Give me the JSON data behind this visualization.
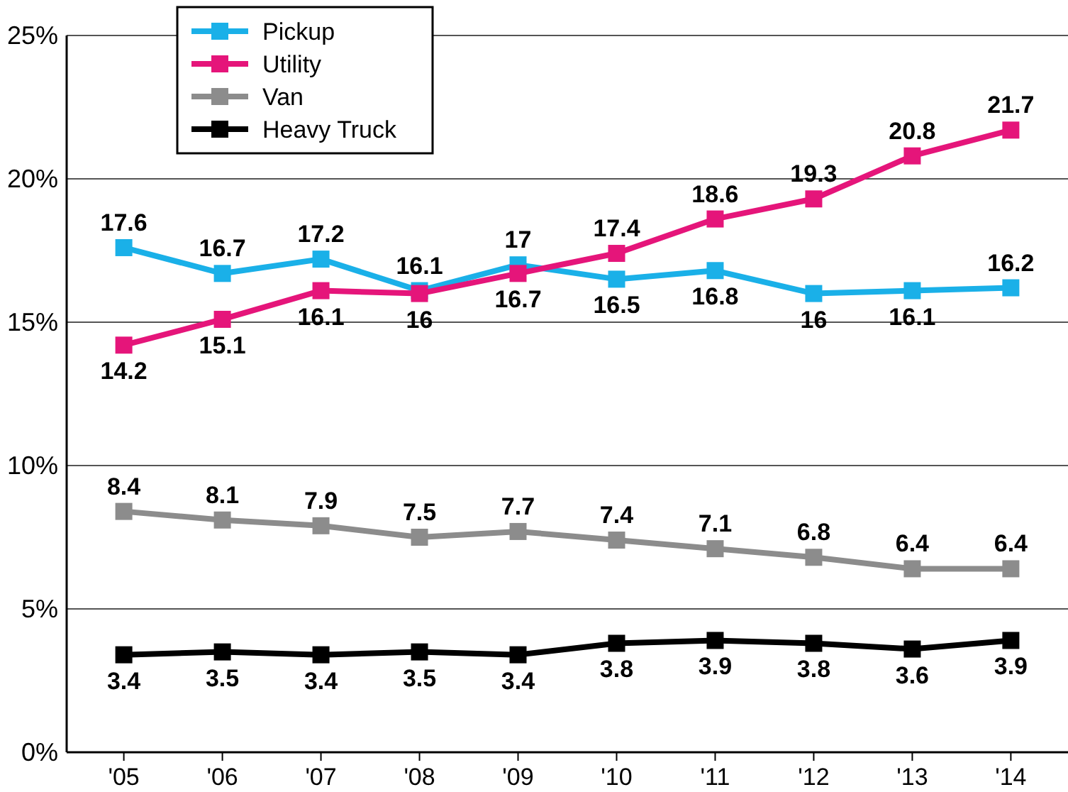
{
  "chart_data": {
    "type": "line",
    "categories": [
      "'05",
      "'06",
      "'07",
      "'08",
      "'09",
      "'10",
      "'11",
      "'12",
      "'13",
      "'14"
    ],
    "series": [
      {
        "name": "Pickup",
        "color": "#1ab0e8",
        "values": [
          17.6,
          16.7,
          17.2,
          16.1,
          17,
          16.5,
          16.8,
          16,
          16.1,
          16.2
        ]
      },
      {
        "name": "Utility",
        "color": "#e5157a",
        "values": [
          14.2,
          15.1,
          16.1,
          16,
          16.7,
          17.4,
          18.6,
          19.3,
          20.8,
          21.7
        ]
      },
      {
        "name": "Van",
        "color": "#8c8c8c",
        "values": [
          8.4,
          8.1,
          7.9,
          7.5,
          7.7,
          7.4,
          7.1,
          6.8,
          6.4,
          6.4
        ]
      },
      {
        "name": "Heavy Truck",
        "color": "#000000",
        "values": [
          3.4,
          3.5,
          3.4,
          3.5,
          3.4,
          3.8,
          3.9,
          3.8,
          3.6,
          3.9
        ]
      }
    ],
    "ylim": [
      0,
      25
    ],
    "yticks": [
      {
        "value": 0,
        "label": "0%"
      },
      {
        "value": 5,
        "label": "5%"
      },
      {
        "value": 10,
        "label": "10%"
      },
      {
        "value": 15,
        "label": "15%"
      },
      {
        "value": 20,
        "label": "20%"
      },
      {
        "value": 25,
        "label": "25%"
      }
    ],
    "grid": "y",
    "legend": "top left",
    "marker": "square",
    "line_style": "solid",
    "data_labels": true
  }
}
